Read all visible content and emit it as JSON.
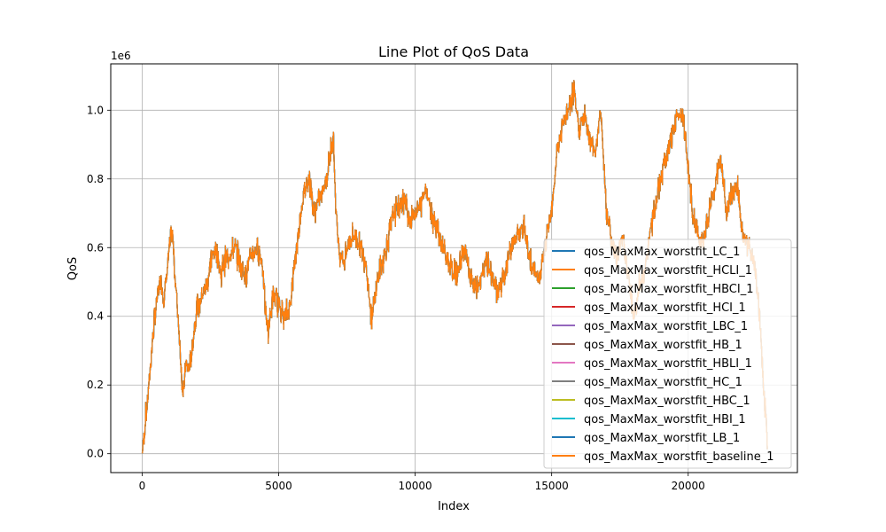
{
  "chart_data": {
    "type": "line",
    "title": "Line Plot of QoS Data",
    "xlabel": "Index",
    "ylabel": "QoS",
    "y_offset_label": "1e6",
    "xlim": [
      -1150,
      24000
    ],
    "ylim": [
      -55000,
      1135000
    ],
    "x_ticks": [
      0,
      5000,
      10000,
      15000,
      20000
    ],
    "x_tick_labels": [
      "0",
      "5000",
      "10000",
      "15000",
      "20000"
    ],
    "y_ticks": [
      0,
      200000,
      400000,
      600000,
      800000,
      1000000
    ],
    "y_tick_labels": [
      "0.0",
      "0.2",
      "0.4",
      "0.6",
      "0.8",
      "1.0"
    ],
    "grid": true,
    "legend_position": "lower-right",
    "series": [
      {
        "name": "qos_MaxMax_worstfit_LC_1",
        "color": "#1f77b4"
      },
      {
        "name": "qos_MaxMax_worstfit_HCLI_1",
        "color": "#ff7f0e"
      },
      {
        "name": "qos_MaxMax_worstfit_HBCI_1",
        "color": "#2ca02c"
      },
      {
        "name": "qos_MaxMax_worstfit_HCI_1",
        "color": "#d62728"
      },
      {
        "name": "qos_MaxMax_worstfit_LBC_1",
        "color": "#9467bd"
      },
      {
        "name": "qos_MaxMax_worstfit_HB_1",
        "color": "#8c564b"
      },
      {
        "name": "qos_MaxMax_worstfit_HBLI_1",
        "color": "#e377c2"
      },
      {
        "name": "qos_MaxMax_worstfit_HC_1",
        "color": "#7f7f7f"
      },
      {
        "name": "qos_MaxMax_worstfit_HBC_1",
        "color": "#bcbd22"
      },
      {
        "name": "qos_MaxMax_worstfit_HBI_1",
        "color": "#17becf"
      },
      {
        "name": "qos_MaxMax_worstfit_LB_1",
        "color": "#1f77b4"
      },
      {
        "name": "qos_MaxMax_worstfit_baseline_1",
        "color": "#ff7f0e"
      }
    ],
    "shared_curve": {
      "x": [
        0,
        100,
        200,
        300,
        400,
        500,
        600,
        700,
        800,
        900,
        1000,
        1100,
        1200,
        1300,
        1400,
        1500,
        1600,
        1700,
        1800,
        1900,
        2000,
        2100,
        2200,
        2300,
        2400,
        2500,
        2600,
        2700,
        2800,
        2900,
        3000,
        3200,
        3400,
        3600,
        3800,
        4000,
        4200,
        4400,
        4500,
        4600,
        4700,
        4800,
        5000,
        5200,
        5400,
        5500,
        5600,
        5700,
        5800,
        5900,
        6000,
        6100,
        6200,
        6300,
        6400,
        6600,
        6800,
        6900,
        7000,
        7100,
        7200,
        7400,
        7600,
        7800,
        8000,
        8200,
        8300,
        8400,
        8600,
        8800,
        9000,
        9200,
        9400,
        9600,
        9800,
        10000,
        10200,
        10400,
        10600,
        10800,
        11000,
        11200,
        11400,
        11600,
        11800,
        12000,
        12200,
        12400,
        12600,
        12800,
        13000,
        13200,
        13400,
        13600,
        13800,
        14000,
        14200,
        14400,
        14600,
        14800,
        15000,
        15200,
        15400,
        15600,
        15800,
        16000,
        16200,
        16400,
        16600,
        16800,
        17000,
        17200,
        17400,
        17600,
        17800,
        18000,
        18200,
        18400,
        18600,
        18800,
        19000,
        19200,
        19400,
        19600,
        19800,
        20000,
        20200,
        20400,
        20600,
        20800,
        21000,
        21200,
        21400,
        21600,
        21800,
        22000,
        22200,
        22400,
        22600,
        22800,
        22900
      ],
      "y": [
        0,
        80000,
        160000,
        250000,
        350000,
        420000,
        480000,
        500000,
        450000,
        520000,
        600000,
        650000,
        520000,
        420000,
        300000,
        160000,
        260000,
        240000,
        280000,
        360000,
        420000,
        430000,
        460000,
        480000,
        500000,
        560000,
        580000,
        600000,
        560000,
        520000,
        560000,
        580000,
        600000,
        550000,
        520000,
        580000,
        600000,
        560000,
        440000,
        360000,
        400000,
        460000,
        440000,
        400000,
        420000,
        500000,
        560000,
        620000,
        700000,
        750000,
        780000,
        800000,
        760000,
        700000,
        720000,
        760000,
        820000,
        880000,
        940000,
        700000,
        600000,
        560000,
        620000,
        640000,
        600000,
        560000,
        480000,
        380000,
        500000,
        560000,
        620000,
        700000,
        720000,
        740000,
        680000,
        700000,
        720000,
        780000,
        700000,
        660000,
        600000,
        560000,
        520000,
        540000,
        600000,
        520000,
        480000,
        500000,
        560000,
        520000,
        470000,
        500000,
        560000,
        620000,
        640000,
        660000,
        560000,
        520000,
        520000,
        620000,
        720000,
        880000,
        950000,
        1000000,
        1050000,
        950000,
        980000,
        920000,
        880000,
        1000000,
        720000,
        620000,
        560000,
        640000,
        520000,
        400000,
        480000,
        520000,
        640000,
        720000,
        800000,
        860000,
        920000,
        980000,
        1000000,
        820000,
        680000,
        620000,
        640000,
        720000,
        780000,
        860000,
        700000,
        760000,
        780000,
        640000,
        600000,
        560000,
        420000,
        160000,
        30000
      ]
    }
  }
}
